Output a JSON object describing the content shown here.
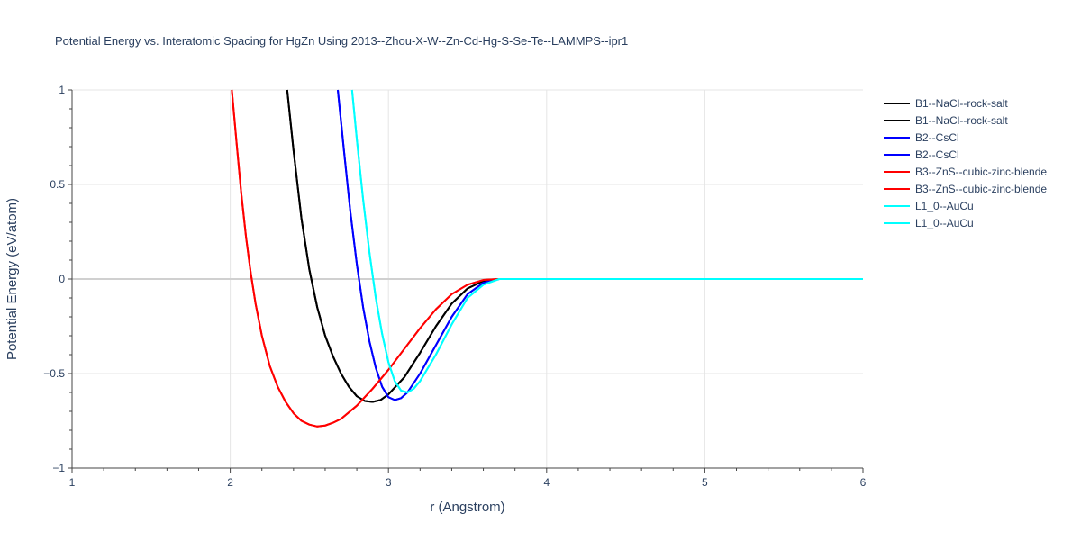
{
  "chart_data": {
    "type": "line",
    "title": "Potential Energy vs. Interatomic Spacing for HgZn Using 2013--Zhou-X-W--Zn-Cd-Hg-S-Se-Te--LAMMPS--ipr1",
    "xlabel": "r (Angstrom)",
    "ylabel": "Potential Energy (eV/atom)",
    "xlim": [
      1,
      6
    ],
    "ylim": [
      -1,
      1
    ],
    "xticks": [
      1,
      2,
      3,
      4,
      5,
      6
    ],
    "xtick_labels": [
      "1",
      "2",
      "3",
      "4",
      "5",
      "6"
    ],
    "yticks": [
      -1,
      -0.5,
      0,
      0.5,
      1
    ],
    "ytick_labels": [
      "−1",
      "−0.5",
      "0",
      "0.5",
      "1"
    ],
    "grid": true,
    "legend_position": "right",
    "series": [
      {
        "name": "B1--NaCl--rock-salt",
        "color": "#000000",
        "x": [
          2.36,
          2.4,
          2.45,
          2.5,
          2.55,
          2.6,
          2.65,
          2.7,
          2.75,
          2.8,
          2.85,
          2.9,
          2.95,
          3.0,
          3.1,
          3.2,
          3.3,
          3.4,
          3.5,
          3.6,
          3.7,
          3.8,
          6.0
        ],
        "y": [
          1.0,
          0.68,
          0.32,
          0.05,
          -0.15,
          -0.3,
          -0.41,
          -0.5,
          -0.57,
          -0.62,
          -0.645,
          -0.65,
          -0.64,
          -0.61,
          -0.52,
          -0.39,
          -0.25,
          -0.13,
          -0.05,
          -0.01,
          0.0,
          0.0,
          0.0
        ]
      },
      {
        "name": "B1--NaCl--rock-salt",
        "color": "#000000",
        "x": [
          2.36,
          2.4,
          2.45,
          2.5,
          2.55,
          2.6,
          2.65,
          2.7,
          2.75,
          2.8,
          2.85,
          2.9,
          2.95,
          3.0,
          3.1,
          3.2,
          3.3,
          3.4,
          3.5,
          3.6,
          3.7,
          3.8,
          6.0
        ],
        "y": [
          1.0,
          0.68,
          0.32,
          0.05,
          -0.15,
          -0.3,
          -0.41,
          -0.5,
          -0.57,
          -0.62,
          -0.645,
          -0.65,
          -0.64,
          -0.61,
          -0.52,
          -0.39,
          -0.25,
          -0.13,
          -0.05,
          -0.01,
          0.0,
          0.0,
          0.0
        ]
      },
      {
        "name": "B2--CsCl",
        "color": "#0000ff",
        "x": [
          2.68,
          2.72,
          2.76,
          2.8,
          2.84,
          2.88,
          2.92,
          2.96,
          3.0,
          3.04,
          3.08,
          3.12,
          3.2,
          3.3,
          3.4,
          3.5,
          3.6,
          3.7,
          3.8,
          6.0
        ],
        "y": [
          1.0,
          0.67,
          0.35,
          0.08,
          -0.15,
          -0.33,
          -0.47,
          -0.57,
          -0.625,
          -0.64,
          -0.63,
          -0.6,
          -0.5,
          -0.35,
          -0.2,
          -0.08,
          -0.02,
          0.0,
          0.0,
          0.0
        ]
      },
      {
        "name": "B2--CsCl",
        "color": "#0000ff",
        "x": [
          2.68,
          2.72,
          2.76,
          2.8,
          2.84,
          2.88,
          2.92,
          2.96,
          3.0,
          3.04,
          3.08,
          3.12,
          3.2,
          3.3,
          3.4,
          3.5,
          3.6,
          3.7,
          3.8,
          6.0
        ],
        "y": [
          1.0,
          0.67,
          0.35,
          0.08,
          -0.15,
          -0.33,
          -0.47,
          -0.57,
          -0.625,
          -0.64,
          -0.63,
          -0.6,
          -0.5,
          -0.35,
          -0.2,
          -0.08,
          -0.02,
          0.0,
          0.0,
          0.0
        ]
      },
      {
        "name": "B3--ZnS--cubic-zinc-blende",
        "color": "#ff0000",
        "x": [
          2.01,
          2.04,
          2.07,
          2.1,
          2.13,
          2.16,
          2.2,
          2.25,
          2.3,
          2.35,
          2.4,
          2.45,
          2.5,
          2.55,
          2.6,
          2.65,
          2.7,
          2.8,
          2.9,
          3.0,
          3.1,
          3.2,
          3.3,
          3.4,
          3.5,
          3.6,
          3.7,
          3.8,
          6.0
        ],
        "y": [
          1.0,
          0.72,
          0.45,
          0.22,
          0.03,
          -0.13,
          -0.3,
          -0.46,
          -0.57,
          -0.65,
          -0.71,
          -0.75,
          -0.77,
          -0.78,
          -0.775,
          -0.76,
          -0.74,
          -0.67,
          -0.58,
          -0.48,
          -0.37,
          -0.26,
          -0.16,
          -0.08,
          -0.03,
          -0.005,
          0.0,
          0.0,
          0.0
        ]
      },
      {
        "name": "B3--ZnS--cubic-zinc-blende",
        "color": "#ff0000",
        "x": [
          2.01,
          2.04,
          2.07,
          2.1,
          2.13,
          2.16,
          2.2,
          2.25,
          2.3,
          2.35,
          2.4,
          2.45,
          2.5,
          2.55,
          2.6,
          2.65,
          2.7,
          2.8,
          2.9,
          3.0,
          3.1,
          3.2,
          3.3,
          3.4,
          3.5,
          3.6,
          3.7,
          3.8,
          6.0
        ],
        "y": [
          1.0,
          0.72,
          0.45,
          0.22,
          0.03,
          -0.13,
          -0.3,
          -0.46,
          -0.57,
          -0.65,
          -0.71,
          -0.75,
          -0.77,
          -0.78,
          -0.775,
          -0.76,
          -0.74,
          -0.67,
          -0.58,
          -0.48,
          -0.37,
          -0.26,
          -0.16,
          -0.08,
          -0.03,
          -0.005,
          0.0,
          0.0,
          0.0
        ]
      },
      {
        "name": "L1_0--AuCu",
        "color": "#00ffff",
        "x": [
          2.77,
          2.8,
          2.84,
          2.88,
          2.92,
          2.96,
          3.0,
          3.04,
          3.08,
          3.12,
          3.16,
          3.2,
          3.3,
          3.4,
          3.5,
          3.6,
          3.7,
          3.8,
          6.0
        ],
        "y": [
          1.0,
          0.74,
          0.42,
          0.14,
          -0.1,
          -0.29,
          -0.44,
          -0.54,
          -0.59,
          -0.6,
          -0.58,
          -0.54,
          -0.4,
          -0.24,
          -0.1,
          -0.03,
          0.0,
          0.0,
          0.0
        ]
      },
      {
        "name": "L1_0--AuCu",
        "color": "#00ffff",
        "x": [
          2.77,
          2.8,
          2.84,
          2.88,
          2.92,
          2.96,
          3.0,
          3.04,
          3.08,
          3.12,
          3.16,
          3.2,
          3.3,
          3.4,
          3.5,
          3.6,
          3.7,
          3.8,
          6.0
        ],
        "y": [
          1.0,
          0.74,
          0.42,
          0.14,
          -0.1,
          -0.29,
          -0.44,
          -0.54,
          -0.59,
          -0.6,
          -0.58,
          -0.54,
          -0.4,
          -0.24,
          -0.1,
          -0.03,
          0.0,
          0.0,
          0.0
        ]
      }
    ]
  }
}
